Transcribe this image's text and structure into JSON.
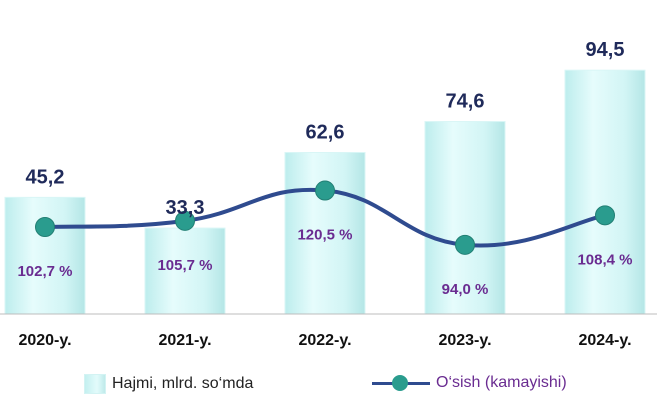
{
  "chart_data": {
    "type": "bar",
    "categories": [
      "2020-y.",
      "2021-y.",
      "2022-y.",
      "2023-y.",
      "2024-y."
    ],
    "series": [
      {
        "name": "Hajmi, mlrd. so‘mda",
        "type": "bar",
        "values": [
          45.2,
          33.3,
          62.6,
          74.6,
          94.5
        ],
        "labels": [
          "45,2",
          "33,3",
          "62,6",
          "74,6",
          "94,5"
        ],
        "color": "#C7F2F2"
      },
      {
        "name": "O‘sish (kamayishi)",
        "type": "line",
        "values": [
          102.7,
          105.7,
          120.5,
          94.0,
          108.4
        ],
        "labels": [
          "102,7 %",
          "105,7 %",
          "120,5 %",
          "94,0 %",
          "108,4 %"
        ],
        "color": "#2F4B8F",
        "marker_color": "#2A9C8E"
      }
    ],
    "grid": false,
    "legend_position": "bottom"
  },
  "colors": {
    "value_label": "#1F2A5A",
    "percent_label": "#6A2C91",
    "axis": "#BDBDBD"
  }
}
